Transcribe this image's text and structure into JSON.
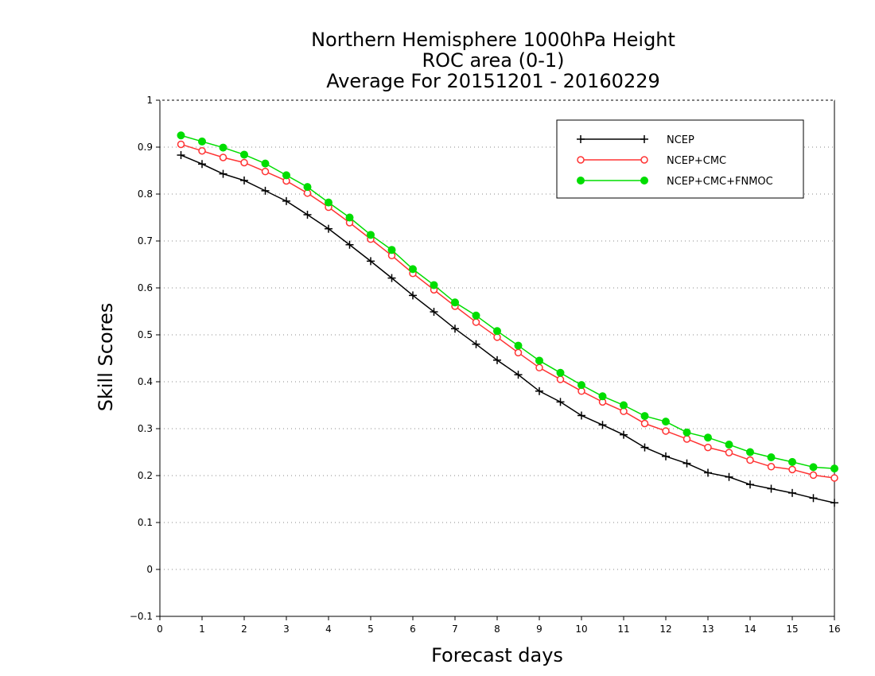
{
  "chart_data": {
    "type": "line",
    "title": [
      "Northern Hemisphere 1000hPa Height",
      "ROC area (0-1)",
      "Average For 20151201 - 20160229"
    ],
    "xlabel": "Forecast days",
    "ylabel": "Skill Scores",
    "xlim": [
      0,
      16
    ],
    "ylim": [
      -0.1,
      1
    ],
    "x_ticks": [
      "0",
      "1",
      "2",
      "3",
      "4",
      "5",
      "6",
      "7",
      "8",
      "9",
      "10",
      "11",
      "12",
      "13",
      "14",
      "15",
      "16"
    ],
    "y_ticks": [
      "−0.1",
      "0",
      "0.1",
      "0.2",
      "0.3",
      "0.4",
      "0.5",
      "0.6",
      "0.7",
      "0.8",
      "0.9",
      "1"
    ],
    "grid": "horizontal-dotted",
    "legend_position": "top-right",
    "x": [
      0.5,
      1,
      1.5,
      2,
      2.5,
      3,
      3.5,
      4,
      4.5,
      5,
      5.5,
      6,
      6.5,
      7,
      7.5,
      8,
      8.5,
      9,
      9.5,
      10,
      10.5,
      11,
      11.5,
      12,
      12.5,
      13,
      13.5,
      14,
      14.5,
      15,
      15.5,
      16
    ],
    "series": [
      {
        "name": "NCEP",
        "color": "#000000",
        "marker": "plus",
        "values": [
          0.883,
          0.864,
          0.843,
          0.829,
          0.807,
          0.785,
          0.756,
          0.726,
          0.692,
          0.657,
          0.621,
          0.584,
          0.549,
          0.513,
          0.48,
          0.446,
          0.415,
          0.38,
          0.357,
          0.328,
          0.308,
          0.287,
          0.26,
          0.241,
          0.226,
          0.206,
          0.197,
          0.181,
          0.172,
          0.163,
          0.152,
          0.142
        ]
      },
      {
        "name": "NCEP+CMC",
        "color": "#ff3333",
        "marker": "open-circle",
        "values": [
          0.906,
          0.892,
          0.878,
          0.867,
          0.848,
          0.828,
          0.802,
          0.772,
          0.739,
          0.704,
          0.669,
          0.631,
          0.596,
          0.561,
          0.527,
          0.495,
          0.462,
          0.43,
          0.405,
          0.38,
          0.357,
          0.337,
          0.311,
          0.295,
          0.278,
          0.26,
          0.249,
          0.233,
          0.219,
          0.213,
          0.201,
          0.195
        ]
      },
      {
        "name": "NCEP+CMC+FNMOC",
        "color": "#00dd00",
        "marker": "filled-circle",
        "values": [
          0.925,
          0.912,
          0.899,
          0.884,
          0.865,
          0.84,
          0.815,
          0.782,
          0.75,
          0.713,
          0.681,
          0.64,
          0.606,
          0.569,
          0.541,
          0.508,
          0.477,
          0.445,
          0.419,
          0.393,
          0.369,
          0.35,
          0.327,
          0.315,
          0.292,
          0.281,
          0.266,
          0.25,
          0.239,
          0.229,
          0.218,
          0.215
        ]
      }
    ]
  }
}
